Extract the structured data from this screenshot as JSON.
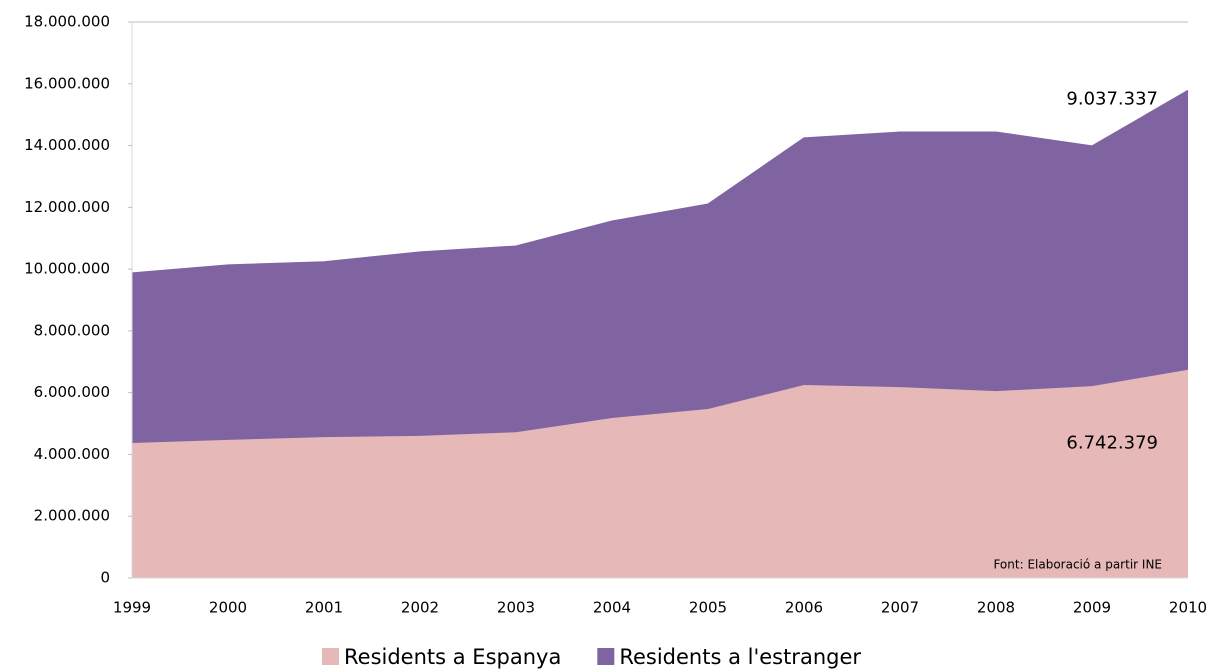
{
  "chart_data": {
    "type": "stacked-area",
    "categories": [
      "1999",
      "2000",
      "2001",
      "2002",
      "2003",
      "2004",
      "2005",
      "2006",
      "2007",
      "2008",
      "2009",
      "2010"
    ],
    "series": [
      {
        "name": "Residents a Espanya",
        "color": "#e6b9b8",
        "values": [
          4370000,
          4470000,
          4560000,
          4600000,
          4720000,
          5180000,
          5470000,
          6250000,
          6180000,
          6050000,
          6210000,
          6742379
        ],
        "value_labels": [
          null,
          null,
          null,
          null,
          null,
          null,
          null,
          null,
          null,
          null,
          null,
          "6.742.379"
        ]
      },
      {
        "name": "Residents a l'estranger",
        "color": "#8064a2",
        "values": [
          5500000,
          5660000,
          5670000,
          5950000,
          6020000,
          6370000,
          6630000,
          7990000,
          8250000,
          8380000,
          7770000,
          9037337
        ],
        "value_labels": [
          null,
          null,
          null,
          null,
          null,
          null,
          null,
          null,
          null,
          null,
          null,
          "9.037.337"
        ]
      }
    ],
    "ylim": [
      0,
      18000000
    ],
    "yticks": [
      0,
      {
        "value": 2000000,
        "label": "2.000.000"
      },
      {
        "value": 4000000,
        "label": "4.000.000"
      },
      {
        "value": 6000000,
        "label": "6.000.000"
      },
      {
        "value": 8000000,
        "label": "8.000.000"
      },
      {
        "value": 10000000,
        "label": "10.000.000"
      },
      {
        "value": 12000000,
        "label": "12.000.000"
      },
      {
        "value": 14000000,
        "label": "14.000.000"
      },
      {
        "value": 16000000,
        "label": "16.000.000"
      },
      {
        "value": 18000000,
        "label": "18.000.000"
      }
    ],
    "annotation": "Font: Elaboració a partir INE",
    "legend": "bottom"
  }
}
